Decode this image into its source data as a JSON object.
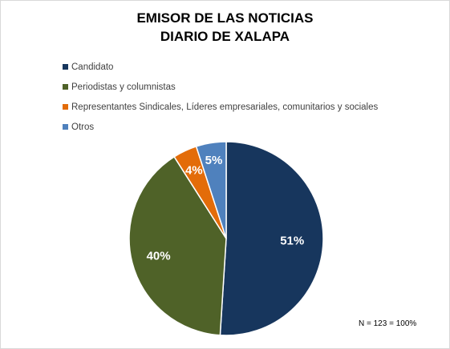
{
  "chart_data": {
    "type": "pie",
    "title": "EMISOR DE LAS NOTICIAS",
    "subtitle": "DIARIO DE XALAPA",
    "categories": [
      "Candidato",
      "Periodistas y columnistas",
      "Representantes Sindicales, Líderes empresariales, comunitarios y sociales",
      "Otros"
    ],
    "values": [
      51,
      40,
      4,
      5
    ],
    "labels": [
      "51%",
      "40%",
      "4%",
      "5%"
    ],
    "colors": [
      "#17365d",
      "#4f6228",
      "#e36c09",
      "#4f81bd"
    ],
    "legend_position": "top-left",
    "note": "N = 123 = 100%"
  }
}
